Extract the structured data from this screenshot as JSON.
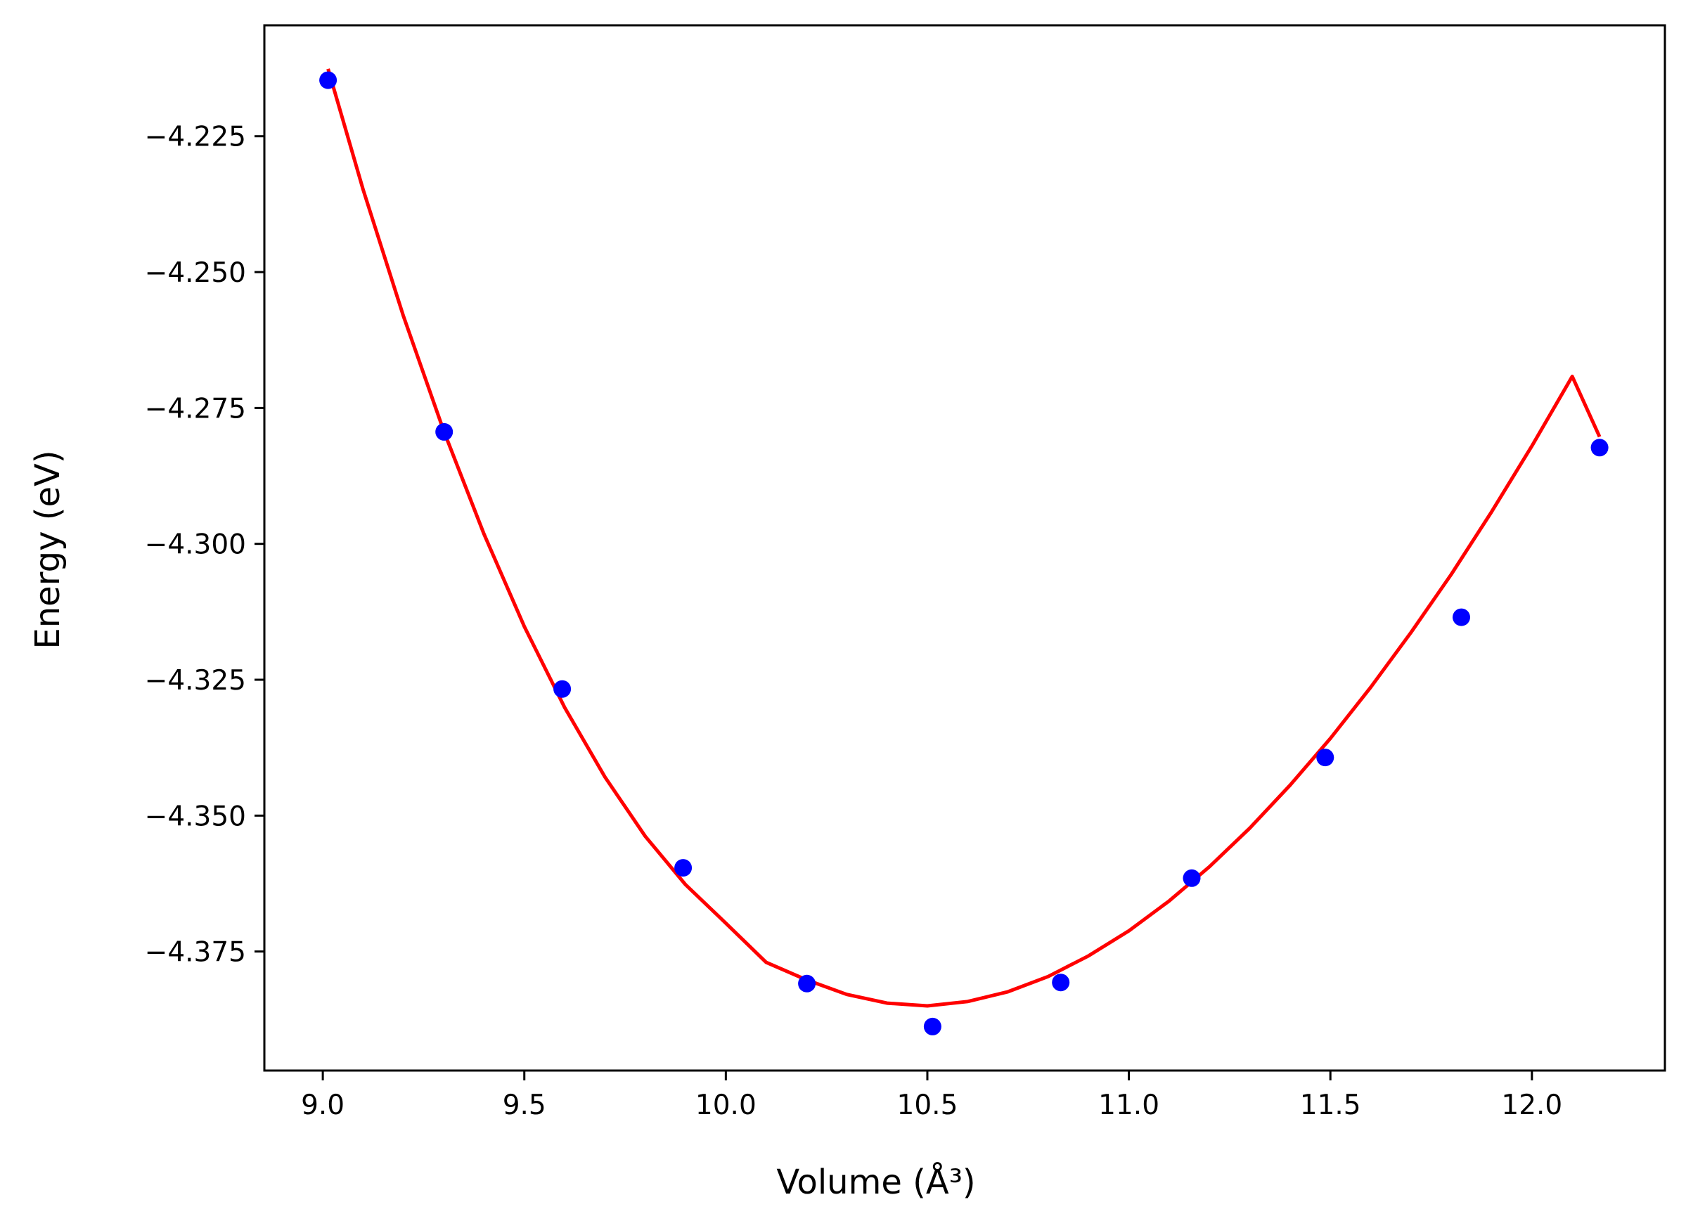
{
  "chart_data": {
    "type": "scatter",
    "title": "",
    "xlabel": "Volume (Å³)",
    "ylabel": "Energy (eV)",
    "xlim": [
      8.855,
      12.33
    ],
    "ylim": [
      -4.3969,
      -4.2046
    ],
    "xticks": [
      {
        "value": 9.0,
        "label": "9.0"
      },
      {
        "value": 9.5,
        "label": "9.5"
      },
      {
        "value": 10.0,
        "label": "10.0"
      },
      {
        "value": 10.5,
        "label": "10.5"
      },
      {
        "value": 11.0,
        "label": "11.0"
      },
      {
        "value": 11.5,
        "label": "11.5"
      },
      {
        "value": 12.0,
        "label": "12.0"
      }
    ],
    "yticks": [
      {
        "value": -4.225,
        "label": "−4.225"
      },
      {
        "value": -4.25,
        "label": "−4.250"
      },
      {
        "value": -4.275,
        "label": "−4.275"
      },
      {
        "value": -4.3,
        "label": "−4.300"
      },
      {
        "value": -4.325,
        "label": "−4.325"
      },
      {
        "value": -4.35,
        "label": "−4.350"
      },
      {
        "value": -4.375,
        "label": "−4.375"
      }
    ],
    "grid": false,
    "series": [
      {
        "kind": "points",
        "color": "#0000ff",
        "x": [
          9.013,
          9.301,
          9.594,
          9.894,
          10.201,
          10.513,
          10.831,
          11.156,
          11.487,
          11.825,
          12.168
        ],
        "y": [
          -4.2147,
          -4.2794,
          -4.3267,
          -4.3596,
          -4.3809,
          -4.3888,
          -4.3807,
          -4.3615,
          -4.3393,
          -4.3135,
          -4.2823
        ]
      },
      {
        "kind": "fit-curve",
        "color": "#ff0000",
        "x": [
          9.013,
          9.1,
          9.2,
          9.3,
          9.4,
          9.5,
          9.6,
          9.7,
          9.8,
          9.9,
          10.0,
          10.1,
          10.2,
          10.3,
          10.4,
          10.5,
          10.6,
          10.7,
          10.8,
          10.9,
          11.0,
          11.1,
          11.2,
          11.3,
          11.4,
          11.5,
          11.6,
          11.7,
          11.8,
          11.9,
          12.0,
          12.1,
          12.168
        ],
        "y": [
          -4.2126,
          -4.2348,
          -4.2581,
          -4.2792,
          -4.2982,
          -4.3152,
          -4.3301,
          -4.3429,
          -4.3538,
          -4.3627,
          -4.3698,
          -4.377,
          -4.3802,
          -4.3829,
          -4.3845,
          -4.385,
          -4.3842,
          -4.3824,
          -4.3796,
          -4.3758,
          -4.3712,
          -4.3657,
          -4.3594,
          -4.3523,
          -4.3444,
          -4.3358,
          -4.3264,
          -4.3163,
          -4.3056,
          -4.2941,
          -4.282,
          -4.2692,
          -4.2803
        ]
      }
    ]
  }
}
